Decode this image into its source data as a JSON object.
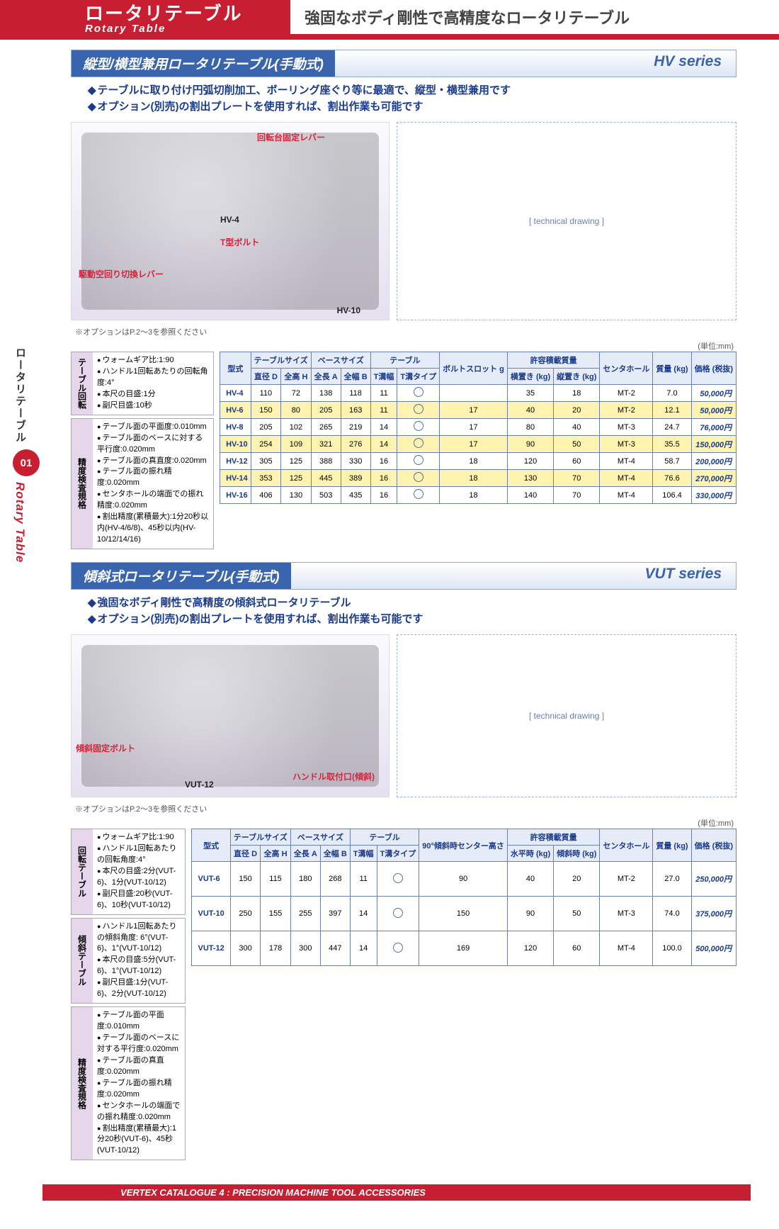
{
  "banner": {
    "jp": "ロータリテーブル",
    "en": "Rotary Table",
    "tagline": "強固なボディ剛性で高精度なロータリテーブル"
  },
  "side": {
    "jp": "ロータリテーブル",
    "num": "01",
    "en": "Rotary Table"
  },
  "unit": "(単位:mm)",
  "opt_note": "※オプションはP.2〜3を参照ください",
  "footer": "VERTEX CATALOGUE 4 : PRECISION MACHINE TOOL ACCESSORIES",
  "hv": {
    "title": "縦型/横型兼用ロータリテーブル(手動式)",
    "series": "HV series",
    "bullets": [
      "テーブルに取り付け円弧切削加工、ボーリング座ぐり等に最適で、縦型・横型兼用です",
      "オプション(別売)の割出プレートを使用すれば、割出作業も可能です"
    ],
    "photo_labels": {
      "a": "回転台固定レバー",
      "b": "HV-4",
      "c": "T型ボルト",
      "d": "駆動空回り切換レバー",
      "e": "HV-10"
    },
    "spec1_head": "テーブル回転",
    "spec1": [
      "ウォームギア比:1:90",
      "ハンドル1回転あたりの回転角度:4°",
      "本尺の目盛:1分",
      "副尺目盛:10秒"
    ],
    "spec2_head": "精度検査規格",
    "spec2": [
      "テーブル面の平面度:0.010mm",
      "テーブル面のベースに対する平行度:0.020mm",
      "テーブル面の真直度:0.020mm",
      "テーブル面の振れ精度:0.020mm",
      "センタホールの端面での振れ精度:0.020mm",
      "割出精度(累積最大):1分20秒以内(HV-4/6/8)、45秒以内(HV-10/12/14/16)"
    ],
    "columns": {
      "model": "型式",
      "g_table": "テーブルサイズ",
      "dia": "直径 D",
      "h": "全高 H",
      "g_base": "ベースサイズ",
      "a": "全長 A",
      "b": "全幅 B",
      "g_tbl2": "テーブル",
      "tw": "T溝幅",
      "tt": "T溝タイプ",
      "bolt": "ボルトスロット g",
      "g_load": "許容積載質量",
      "hor": "横置き (kg)",
      "ver": "縦置き (kg)",
      "center": "センタホール",
      "mass": "質量 (kg)",
      "price": "価格 (税抜)"
    },
    "rows": [
      {
        "m": "HV-4",
        "d": "110",
        "h": "72",
        "a": "138",
        "b": "118",
        "tw": "11",
        "bolt": "",
        "hor": "35",
        "ver": "18",
        "c": "MT-2",
        "kg": "7.0",
        "p": "50,000円",
        "hl": false
      },
      {
        "m": "HV-6",
        "d": "150",
        "h": "80",
        "a": "205",
        "b": "163",
        "tw": "11",
        "bolt": "17",
        "hor": "40",
        "ver": "20",
        "c": "MT-2",
        "kg": "12.1",
        "p": "50,000円",
        "hl": true
      },
      {
        "m": "HV-8",
        "d": "205",
        "h": "102",
        "a": "265",
        "b": "219",
        "tw": "14",
        "bolt": "17",
        "hor": "80",
        "ver": "40",
        "c": "MT-3",
        "kg": "24.7",
        "p": "76,000円",
        "hl": false
      },
      {
        "m": "HV-10",
        "d": "254",
        "h": "109",
        "a": "321",
        "b": "276",
        "tw": "14",
        "bolt": "17",
        "hor": "90",
        "ver": "50",
        "c": "MT-3",
        "kg": "35.5",
        "p": "150,000円",
        "hl": true
      },
      {
        "m": "HV-12",
        "d": "305",
        "h": "125",
        "a": "388",
        "b": "330",
        "tw": "16",
        "bolt": "18",
        "hor": "120",
        "ver": "60",
        "c": "MT-4",
        "kg": "58.7",
        "p": "200,000円",
        "hl": false
      },
      {
        "m": "HV-14",
        "d": "353",
        "h": "125",
        "a": "445",
        "b": "389",
        "tw": "16",
        "bolt": "18",
        "hor": "130",
        "ver": "70",
        "c": "MT-4",
        "kg": "76.6",
        "p": "270,000円",
        "hl": true
      },
      {
        "m": "HV-16",
        "d": "406",
        "h": "130",
        "a": "503",
        "b": "435",
        "tw": "16",
        "bolt": "18",
        "hor": "140",
        "ver": "70",
        "c": "MT-4",
        "kg": "106.4",
        "p": "330,000円",
        "hl": false
      }
    ]
  },
  "vut": {
    "title": "傾斜式ロータリテーブル(手動式)",
    "series": "VUT series",
    "bullets": [
      "強固なボディ剛性で高精度の傾斜式ロータリテーブル",
      "オプション(別売)の割出プレートを使用すれば、割出作業も可能です"
    ],
    "photo_labels": {
      "a": "傾斜固定ボルト",
      "b": "VUT-12",
      "c": "ハンドル取付口(傾斜)"
    },
    "spec1_head": "回転テーブル",
    "spec1": [
      "ウォームギア比:1:90",
      "ハンドル1回転あたりの回転角度:4°",
      "本尺の目盛:2分(VUT-6)、1分(VUT-10/12)",
      "副尺目盛:20秒(VUT-6)、10秒(VUT-10/12)"
    ],
    "spec2_head": "傾斜テーブル",
    "spec2": [
      "ハンドル1回転あたりの傾斜角度: 6°(VUT-6)、1°(VUT-10/12)",
      "本尺の目盛:5分(VUT-6)、1°(VUT-10/12)",
      "副尺目盛:1分(VUT-6)、2分(VUT-10/12)"
    ],
    "spec3_head": "精度検査規格",
    "spec3": [
      "テーブル面の平面度:0.010mm",
      "テーブル面のベースに対する平行度:0.020mm",
      "テーブル面の真直度:0.020mm",
      "テーブル面の振れ精度:0.020mm",
      "センタホールの端面での振れ精度:0.020mm",
      "割出精度(累積最大):1分20秒(VUT-6)、45秒(VUT-10/12)"
    ],
    "columns": {
      "model": "型式",
      "g_table": "テーブルサイズ",
      "dia": "直径 D",
      "h": "全高 H",
      "g_base": "ベースサイズ",
      "a": "全長 A",
      "b": "全幅 B",
      "g_tbl2": "テーブル",
      "tw": "T溝幅",
      "tt": "T溝タイプ",
      "tilt": "90°傾斜時センター高さ",
      "g_load": "許容積載質量",
      "hor": "水平時 (kg)",
      "ver": "傾斜時 (kg)",
      "center": "センタホール",
      "mass": "質量 (kg)",
      "price": "価格 (税抜)"
    },
    "rows": [
      {
        "m": "VUT-6",
        "d": "150",
        "h": "115",
        "a": "180",
        "b": "268",
        "tw": "11",
        "tilt": "90",
        "hor": "40",
        "ver": "20",
        "c": "MT-2",
        "kg": "27.0",
        "p": "250,000円"
      },
      {
        "m": "VUT-10",
        "d": "250",
        "h": "155",
        "a": "255",
        "b": "397",
        "tw": "14",
        "tilt": "150",
        "hor": "90",
        "ver": "50",
        "c": "MT-3",
        "kg": "74.0",
        "p": "375,000円"
      },
      {
        "m": "VUT-12",
        "d": "300",
        "h": "178",
        "a": "300",
        "b": "447",
        "tw": "14",
        "tilt": "169",
        "hor": "120",
        "ver": "60",
        "c": "MT-4",
        "kg": "100.0",
        "p": "500,000円"
      }
    ]
  }
}
